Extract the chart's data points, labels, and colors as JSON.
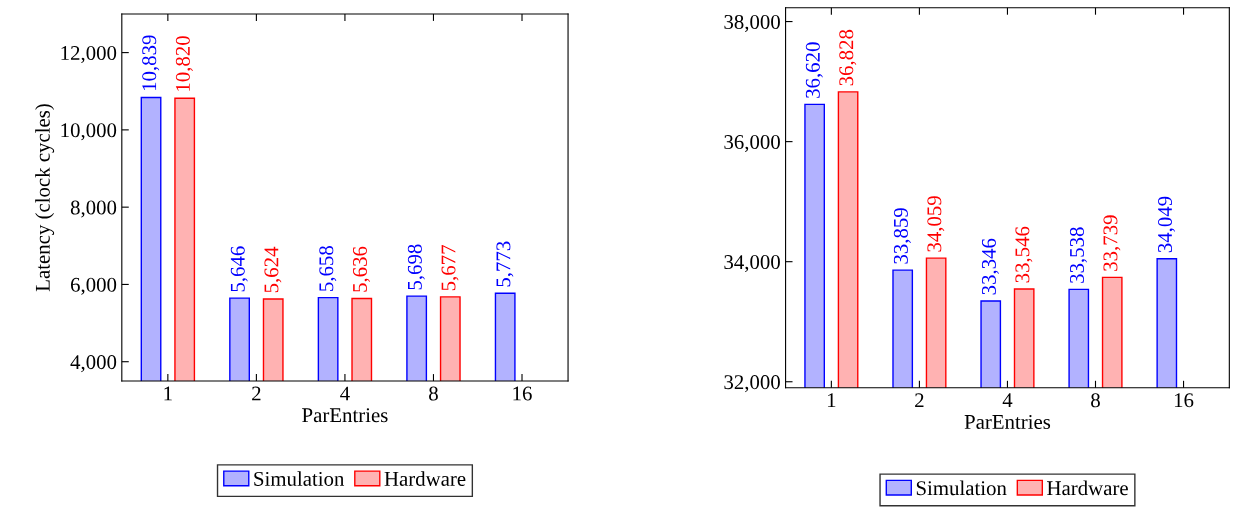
{
  "chart_data": [
    {
      "type": "bar",
      "xlabel": "ParEntries",
      "ylabel": "Latency (clock cycles)",
      "categories": [
        "1",
        "2",
        "4",
        "8",
        "16"
      ],
      "series": [
        {
          "name": "Simulation",
          "color": "#0000ff",
          "values": [
            10839,
            5646,
            5658,
            5698,
            5773
          ],
          "value_labels": [
            "10,839",
            "5,646",
            "5,658",
            "5,698",
            "5,773"
          ]
        },
        {
          "name": "Hardware",
          "color": "#ff0000",
          "values": [
            10820,
            5624,
            5636,
            5677,
            null
          ],
          "value_labels": [
            "10,820",
            "5,624",
            "5,636",
            "5,677",
            null
          ]
        }
      ],
      "ylim": [
        3500,
        13000
      ],
      "yticks": [
        {
          "value": 4000,
          "label": "4,000"
        },
        {
          "value": 6000,
          "label": "6,000"
        },
        {
          "value": 8000,
          "label": "8,000"
        },
        {
          "value": 10000,
          "label": "10,000"
        },
        {
          "value": 12000,
          "label": "12,000"
        }
      ],
      "legend": "bottom",
      "grid": false
    },
    {
      "type": "bar",
      "xlabel": "ParEntries",
      "categories": [
        "1",
        "2",
        "4",
        "8",
        "16"
      ],
      "series": [
        {
          "name": "Simulation",
          "color": "#0000ff",
          "values": [
            36620,
            33859,
            33346,
            33538,
            34049
          ],
          "value_labels": [
            "36,620",
            "33,859",
            "33,346",
            "33,538",
            "34,049"
          ]
        },
        {
          "name": "Hardware",
          "color": "#ff0000",
          "values": [
            36828,
            34059,
            33546,
            33739,
            null
          ],
          "value_labels": [
            "36,828",
            "34,059",
            "33,546",
            "33,739",
            null
          ]
        }
      ],
      "ylim": [
        31900,
        38230
      ],
      "yticks": [
        {
          "value": 32000,
          "label": "32,000"
        },
        {
          "value": 34000,
          "label": "34,000"
        },
        {
          "value": 36000,
          "label": "36,000"
        },
        {
          "value": 38000,
          "label": "38,000"
        }
      ],
      "legend": "bottom",
      "grid": false
    }
  ]
}
